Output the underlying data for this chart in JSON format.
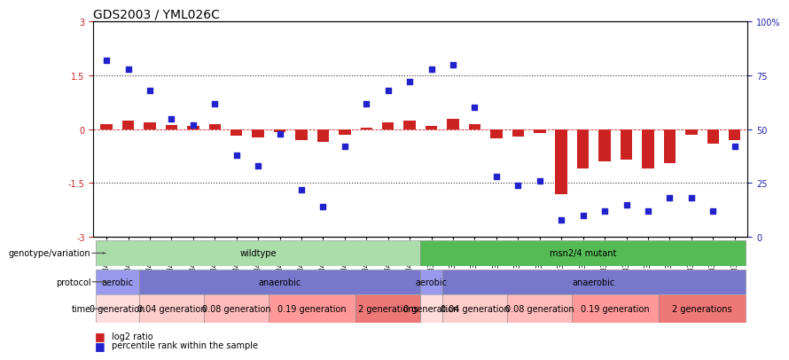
{
  "title": "GDS2003 / YML026C",
  "samples": [
    "GSM41252",
    "GSM41253",
    "GSM41254",
    "GSM41255",
    "GSM41256",
    "GSM41257",
    "GSM41258",
    "GSM41259",
    "GSM41260",
    "GSM41264",
    "GSM41265",
    "GSM41266",
    "GSM41279",
    "GSM41280",
    "GSM41281",
    "GSM33504",
    "GSM33505",
    "GSM33506",
    "GSM33507",
    "GSM33508",
    "GSM33509",
    "GSM33510",
    "GSM33511",
    "GSM33512",
    "GSM33514",
    "GSM33516",
    "GSM33518",
    "GSM33520",
    "GSM33522",
    "GSM33523"
  ],
  "log2_ratio": [
    0.15,
    0.25,
    0.18,
    0.12,
    0.1,
    0.13,
    -0.18,
    -0.22,
    -0.08,
    -0.3,
    -0.35,
    -0.15,
    0.05,
    0.2,
    0.25,
    0.08,
    0.3,
    0.15,
    -0.25,
    -0.2,
    -0.1,
    -1.8,
    -1.1,
    -0.9,
    -0.85,
    -1.1,
    -0.95,
    -0.15,
    -0.4,
    -0.3
  ],
  "percentile": [
    82,
    78,
    68,
    55,
    52,
    62,
    38,
    33,
    48,
    22,
    14,
    42,
    62,
    68,
    72,
    78,
    80,
    60,
    28,
    24,
    26,
    8,
    10,
    12,
    15,
    12,
    18,
    18,
    12,
    42
  ],
  "genotype_groups": [
    {
      "label": "wildtype",
      "start": 0,
      "end": 15,
      "color": "#AADDAA"
    },
    {
      "label": "msn2/4 mutant",
      "start": 15,
      "end": 30,
      "color": "#55BB55"
    }
  ],
  "protocol_groups": [
    {
      "label": "aerobic",
      "start": 0,
      "end": 2,
      "color": "#9999EE"
    },
    {
      "label": "anaerobic",
      "start": 2,
      "end": 15,
      "color": "#7777CC"
    },
    {
      "label": "aerobic",
      "start": 15,
      "end": 16,
      "color": "#9999EE"
    },
    {
      "label": "anaerobic",
      "start": 16,
      "end": 30,
      "color": "#7777CC"
    }
  ],
  "time_groups": [
    {
      "label": "0 generation",
      "start": 0,
      "end": 2,
      "color": "#FFDDDD"
    },
    {
      "label": "0.04 generation",
      "start": 2,
      "end": 5,
      "color": "#FFCCCC"
    },
    {
      "label": "0.08 generation",
      "start": 5,
      "end": 8,
      "color": "#FFBBBB"
    },
    {
      "label": "0.19 generation",
      "start": 8,
      "end": 12,
      "color": "#FF9999"
    },
    {
      "label": "2 generations",
      "start": 12,
      "end": 15,
      "color": "#EE7777"
    },
    {
      "label": "0 generation",
      "start": 15,
      "end": 16,
      "color": "#FFDDDD"
    },
    {
      "label": "0.04 generation",
      "start": 16,
      "end": 19,
      "color": "#FFCCCC"
    },
    {
      "label": "0.08 generation",
      "start": 19,
      "end": 22,
      "color": "#FFBBBB"
    },
    {
      "label": "0.19 generation",
      "start": 22,
      "end": 26,
      "color": "#FF9999"
    },
    {
      "label": "2 generations",
      "start": 26,
      "end": 30,
      "color": "#EE7777"
    }
  ],
  "ylim_left": [
    -3,
    3
  ],
  "bar_color": "#CC2222",
  "dot_color": "#2222CC",
  "bg_color": "#FFFFFF",
  "tick_fontsize": 7,
  "right_tick_color": "#2222AA",
  "label_fontsize": 7.5,
  "sample_fontsize": 6.5,
  "title_fontsize": 10,
  "row_label_fontsize": 7,
  "annot_fontsize": 7
}
